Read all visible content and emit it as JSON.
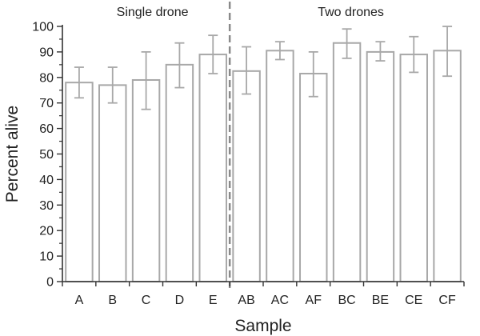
{
  "chart_data": {
    "type": "bar",
    "xlabel": "Sample",
    "ylabel": "Percent alive",
    "ylim": [
      0,
      100
    ],
    "yticks": [
      0,
      10,
      20,
      30,
      40,
      50,
      60,
      70,
      80,
      90,
      100
    ],
    "grid": false,
    "categories": [
      "A",
      "B",
      "C",
      "D",
      "E",
      "AB",
      "AC",
      "AF",
      "BC",
      "BE",
      "CE",
      "CF"
    ],
    "values": [
      78,
      77,
      79,
      85,
      89,
      82.5,
      90.5,
      81.5,
      93.5,
      90,
      89,
      90.5
    ],
    "error_low": [
      72,
      70,
      67.5,
      76,
      81.5,
      73.5,
      87,
      72.5,
      87.5,
      86.5,
      82,
      80.5
    ],
    "error_high": [
      84,
      84,
      90,
      93.5,
      96.5,
      92,
      94,
      90,
      99,
      94,
      96,
      100
    ],
    "groups": [
      {
        "label": "Single drone",
        "categories": [
          "A",
          "B",
          "C",
          "D",
          "E"
        ]
      },
      {
        "label": "Two drones",
        "categories": [
          "AB",
          "AC",
          "AF",
          "BC",
          "BE",
          "CE",
          "CF"
        ]
      }
    ],
    "colors": {
      "bar_fill": "#ffffff",
      "bar_stroke": "#a8a8a8",
      "error_bar": "#a8a8a8",
      "axis": "#333333",
      "divider": "#8a8a8a"
    }
  }
}
